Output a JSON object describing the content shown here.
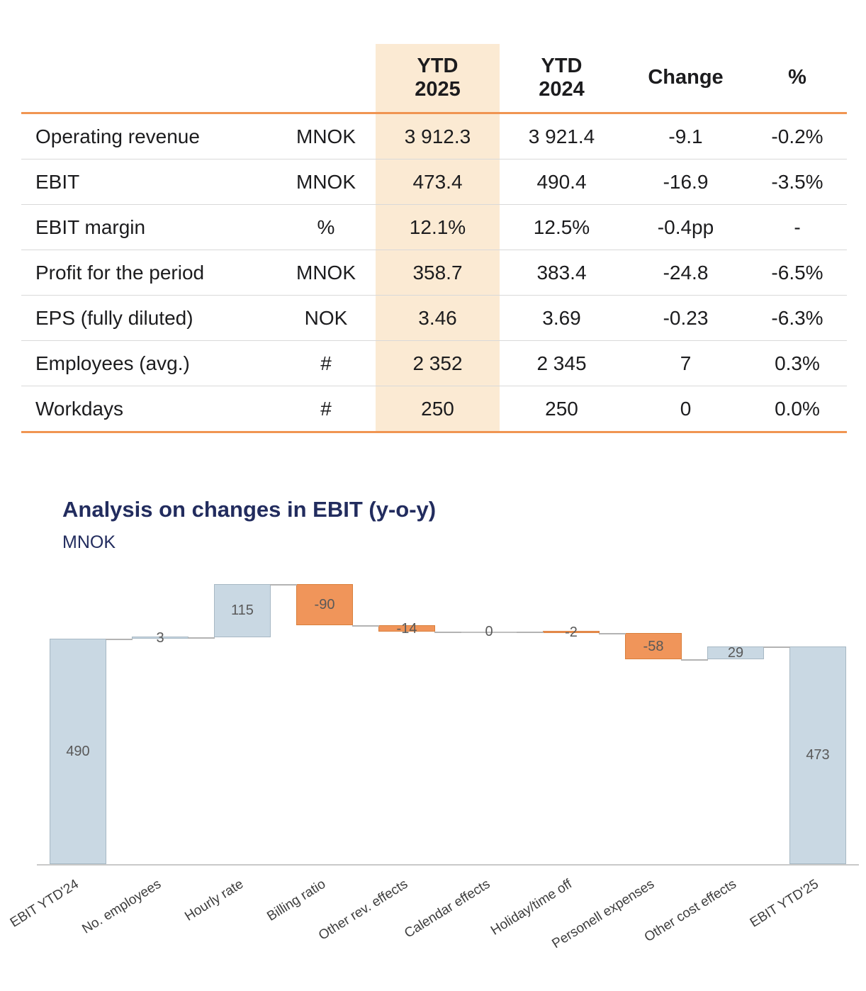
{
  "table": {
    "header": {
      "ytd2025_line1": "YTD",
      "ytd2025_line2": "2025",
      "ytd2024_line1": "YTD",
      "ytd2024_line2": "2024",
      "change": "Change",
      "pct": "%"
    },
    "rows": [
      {
        "label": "Operating revenue",
        "unit": "MNOK",
        "ytd2025": "3 912.3",
        "ytd2024": "3 921.4",
        "change": "-9.1",
        "pct": "-0.2%"
      },
      {
        "label": "EBIT",
        "unit": "MNOK",
        "ytd2025": "473.4",
        "ytd2024": "490.4",
        "change": "-16.9",
        "pct": "-3.5%"
      },
      {
        "label": "EBIT margin",
        "unit": "%",
        "ytd2025": "12.1%",
        "ytd2024": "12.5%",
        "change": "-0.4pp",
        "pct": "-"
      },
      {
        "label": "Profit for the period",
        "unit": "MNOK",
        "ytd2025": "358.7",
        "ytd2024": "383.4",
        "change": "-24.8",
        "pct": "-6.5%"
      },
      {
        "label": "EPS (fully diluted)",
        "unit": "NOK",
        "ytd2025": "3.46",
        "ytd2024": "3.69",
        "change": "-0.23",
        "pct": "-6.3%"
      },
      {
        "label": "Employees (avg.)",
        "unit": "#",
        "ytd2025": "2 352",
        "ytd2024": "2 345",
        "change": "7",
        "pct": "0.3%"
      },
      {
        "label": "Workdays",
        "unit": "#",
        "ytd2025": "250",
        "ytd2024": "250",
        "change": "0",
        "pct": "0.0%"
      }
    ],
    "highlight_color": "#fbead3",
    "accent_border_color": "#f09552",
    "row_divider_color": "#d9d9d9"
  },
  "chart": {
    "title": "Analysis on changes in EBIT (y-o-y)",
    "subtitle": "MNOK",
    "title_color": "#222c5e"
  },
  "chart_data": {
    "type": "waterfall",
    "title": "Analysis on changes in EBIT (y-o-y)",
    "unit": "MNOK",
    "categories": [
      "EBIT YTD'24",
      "No. employees",
      "Hourly rate",
      "Billing ratio",
      "Other rev. effects",
      "Calendar effects",
      "Holiday/time off",
      "Personell expenses",
      "Other cost effects",
      "EBIT YTD'25"
    ],
    "values": [
      490,
      3,
      115,
      -90,
      -14,
      0,
      -2,
      -58,
      29,
      473
    ],
    "value_labels": [
      "490",
      "3",
      "115",
      "-90",
      "-14",
      "0",
      "-2",
      "-58",
      "29",
      "473"
    ],
    "bar_types": [
      "total",
      "delta",
      "delta",
      "delta",
      "delta",
      "delta",
      "delta",
      "delta",
      "delta",
      "total"
    ],
    "baseline": 0,
    "y_max": 620,
    "legend": "none",
    "grid": false,
    "colors": {
      "increase": "#c9d8e3",
      "increase_border": "#a7b8c4",
      "decrease": "#f0955a",
      "decrease_border": "#d97f3b",
      "total": "#c9d8e3",
      "total_border": "#a7b8c4",
      "zero": "#bfbfbf",
      "connector": "#b3b3b3",
      "axis": "#c9c9c9",
      "value_label": "#595959",
      "category_label": "#3d3d3d"
    }
  }
}
